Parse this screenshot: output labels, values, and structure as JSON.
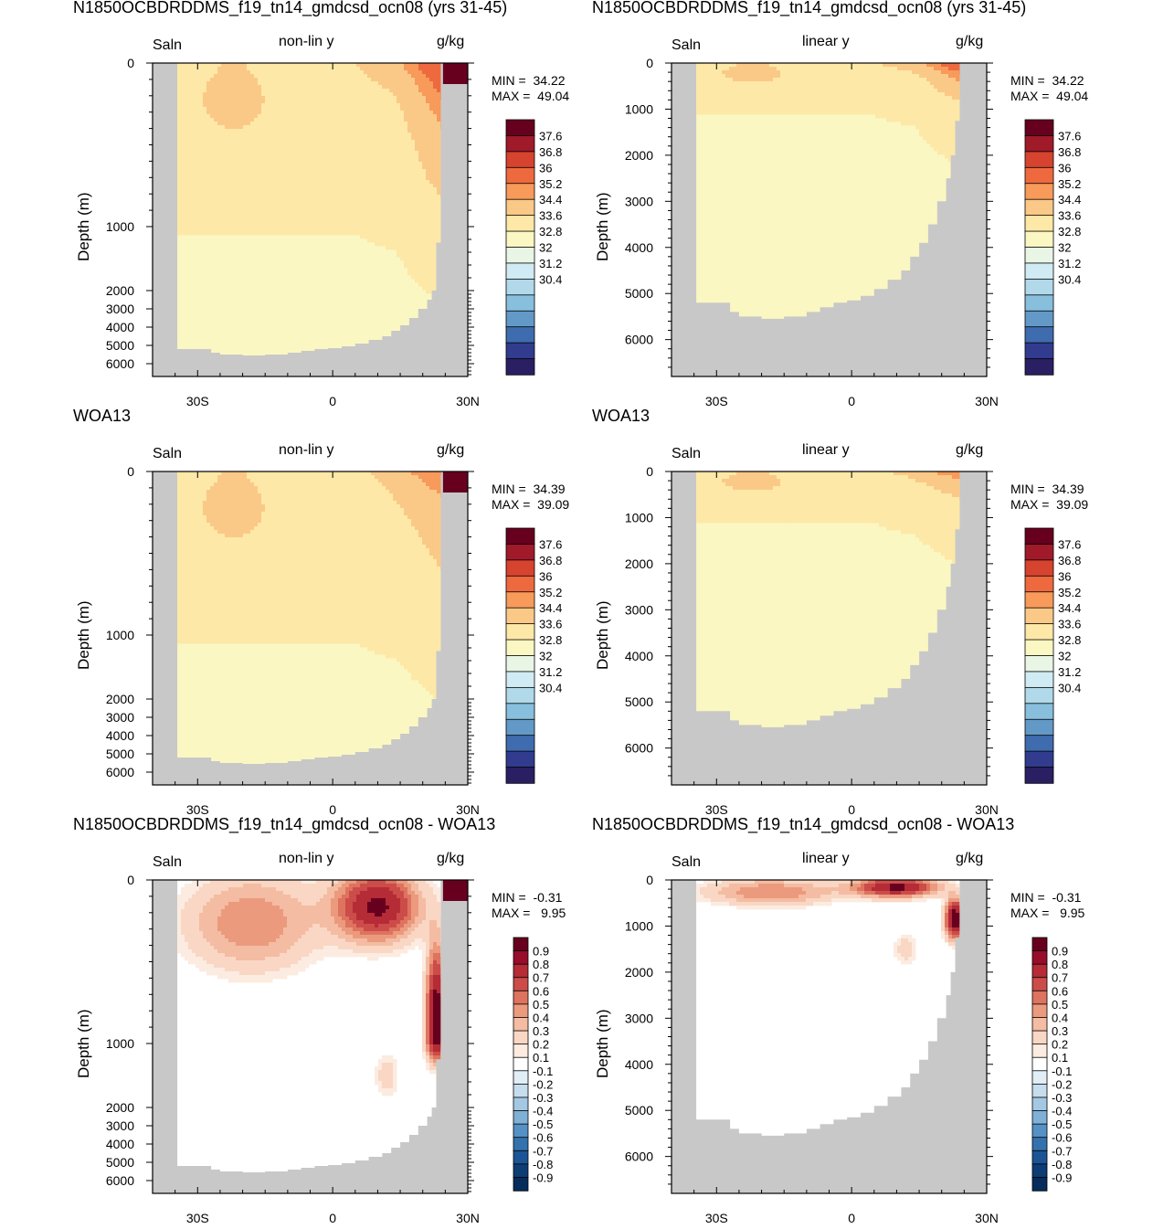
{
  "figure": {
    "panels": [
      {
        "id": "model-nonlin",
        "title": "N1850OCBDRDDMS_f19_tn14_gmdcsd_ocn08 (yrs 31-45)",
        "variable": "Saln",
        "scale_label": "non-lin y",
        "units": "g/kg",
        "ylabel": "Depth (m)",
        "min_label": "MIN =  34.22",
        "max_label": "MAX =  49.04",
        "colorbar": "abs"
      },
      {
        "id": "model-lin",
        "title": "N1850OCBDRDDMS_f19_tn14_gmdcsd_ocn08 (yrs 31-45)",
        "variable": "Saln",
        "scale_label": "linear y",
        "units": "g/kg",
        "ylabel": "Depth (m)",
        "min_label": "MIN =  34.22",
        "max_label": "MAX =  49.04",
        "colorbar": "abs"
      },
      {
        "id": "obs-nonlin",
        "title": "WOA13",
        "variable": "Saln",
        "scale_label": "non-lin y",
        "units": "g/kg",
        "ylabel": "Depth (m)",
        "min_label": "MIN =  34.39",
        "max_label": "MAX =  39.09",
        "colorbar": "abs"
      },
      {
        "id": "obs-lin",
        "title": "WOA13",
        "variable": "Saln",
        "scale_label": "linear y",
        "units": "g/kg",
        "ylabel": "Depth (m)",
        "min_label": "MIN =  34.39",
        "max_label": "MAX =  39.09",
        "colorbar": "abs"
      },
      {
        "id": "diff-nonlin",
        "title": "N1850OCBDRDDMS_f19_tn14_gmdcsd_ocn08 - WOA13",
        "variable": "Saln",
        "scale_label": "non-lin y",
        "units": "g/kg",
        "ylabel": "Depth (m)",
        "min_label": "MIN =  -0.31",
        "max_label": "MAX =   9.95",
        "colorbar": "diff"
      },
      {
        "id": "diff-lin",
        "title": "N1850OCBDRDDMS_f19_tn14_gmdcsd_ocn08 - WOA13",
        "variable": "Saln",
        "scale_label": "linear y",
        "units": "g/kg",
        "ylabel": "Depth (m)",
        "min_label": "MIN =  -0.31",
        "max_label": "MAX =   9.95",
        "colorbar": "diff"
      }
    ]
  },
  "chart_data": {
    "type": "heatmap",
    "x_tick_labels": [
      "30S",
      "0",
      "30N"
    ],
    "x_tick_values": [
      -30,
      0,
      30
    ],
    "xlim": [
      -40,
      30
    ],
    "nonlin_y_tick_labels": [
      "0",
      "1000",
      "2000",
      "3000",
      "4000",
      "5000",
      "6000"
    ],
    "linear_y_tick_labels": [
      "1000",
      "2000",
      "3000",
      "4000",
      "5000",
      "6000",
      "0"
    ],
    "linear_ylim": [
      0,
      6800
    ],
    "colorbar_abs": {
      "labels": [
        "37.6",
        "36.8",
        "36",
        "35.2",
        "34.4",
        "33.6",
        "32.8",
        "32",
        "31.2",
        "30.4"
      ],
      "colors": [
        "#67001f",
        "#a01a2a",
        "#d6432e",
        "#ee6a3e",
        "#f79a5a",
        "#fbc987",
        "#fde8a7",
        "#fbf7c2",
        "#e9f6e6",
        "#d0ebf3",
        "#b1d9ea",
        "#88bfdd",
        "#6399c6",
        "#3f6cae",
        "#313c8e",
        "#2b1f63"
      ]
    },
    "colorbar_diff": {
      "labels": [
        "0.9",
        "0.8",
        "0.7",
        "0.6",
        "0.5",
        "0.4",
        "0.3",
        "0.2",
        "0.1",
        "-0.1",
        "-0.2",
        "-0.3",
        "-0.4",
        "-0.5",
        "-0.6",
        "-0.7",
        "-0.8",
        "-0.9"
      ],
      "colors": [
        "#67001f",
        "#980d2a",
        "#b52b36",
        "#cc4c4a",
        "#de735f",
        "#eb9a7e",
        "#f4bca2",
        "#f9d7c4",
        "#fcebe0",
        "#ffffff",
        "#e2eef6",
        "#c6ddee",
        "#a4c8e2",
        "#7fb0d6",
        "#5591c4",
        "#3472ae",
        "#1c5595",
        "#0d3d75",
        "#052c5a"
      ]
    },
    "colors": {
      "land": "#c8c8c8",
      "frame": "#000000"
    }
  }
}
